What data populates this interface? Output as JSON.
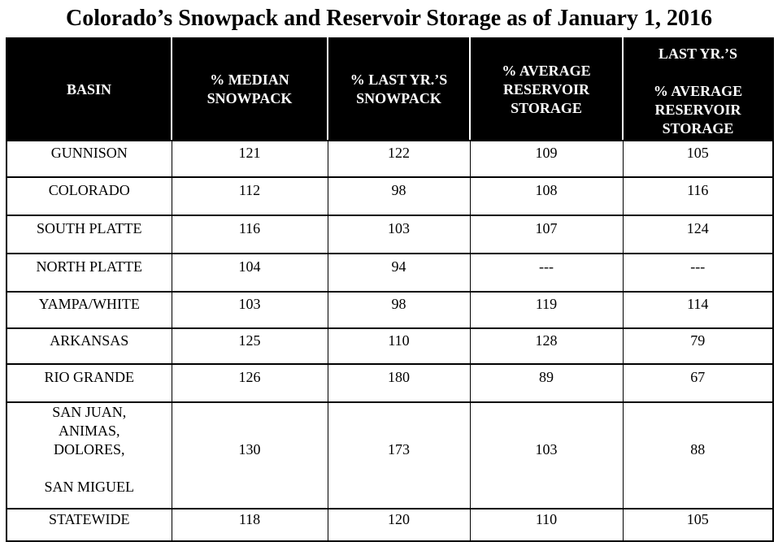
{
  "title": "Colorado’s Snowpack and Reservoir Storage as of January 1, 2016",
  "table": {
    "columns": [
      "BASIN",
      "% MEDIAN\nSNOWPACK",
      "% LAST YR.’S\nSNOWPACK",
      "% AVERAGE\nRESERVOIR\nSTORAGE",
      "LAST YR.’S\n\n% AVERAGE\nRESERVOIR\nSTORAGE"
    ],
    "rows": [
      {
        "basin": "GUNNISON",
        "values": [
          "121",
          "122",
          "109",
          "105"
        ]
      },
      {
        "basin": "COLORADO",
        "values": [
          "112",
          "98",
          "108",
          "116"
        ]
      },
      {
        "basin": "SOUTH PLATTE",
        "values": [
          "116",
          "103",
          "107",
          "124"
        ]
      },
      {
        "basin": "NORTH PLATTE",
        "values": [
          "104",
          "94",
          "---",
          "---"
        ]
      },
      {
        "basin": "YAMPA/WHITE",
        "values": [
          "103",
          "98",
          "119",
          "114"
        ]
      },
      {
        "basin": "ARKANSAS",
        "values": [
          "125",
          "110",
          "128",
          "79"
        ]
      },
      {
        "basin": "RIO GRANDE",
        "values": [
          "126",
          "180",
          "89",
          "67"
        ]
      },
      {
        "basin": "SAN JUAN,\nANIMAS,\nDOLORES,\n\nSAN MIGUEL",
        "values": [
          "130",
          "173",
          "103",
          "88"
        ]
      },
      {
        "basin": "STATEWIDE",
        "values": [
          "118",
          "120",
          "110",
          "105"
        ]
      }
    ]
  },
  "colors": {
    "header_background": "#000000",
    "header_text": "#ffffff",
    "body_text": "#000000",
    "border": "#000000"
  },
  "chart_data": {
    "type": "table",
    "title": "Colorado’s Snowpack and Reservoir Storage as of January 1, 2016",
    "columns": [
      "BASIN",
      "% MEDIAN SNOWPACK",
      "% LAST YR.’S SNOWPACK",
      "% AVERAGE RESERVOIR STORAGE",
      "LAST YR.’S % AVERAGE RESERVOIR STORAGE"
    ],
    "rows": [
      [
        "GUNNISON",
        121,
        122,
        109,
        105
      ],
      [
        "COLORADO",
        112,
        98,
        108,
        116
      ],
      [
        "SOUTH PLATTE",
        116,
        103,
        107,
        124
      ],
      [
        "NORTH PLATTE",
        104,
        94,
        "---",
        "---"
      ],
      [
        "YAMPA/WHITE",
        103,
        98,
        119,
        114
      ],
      [
        "ARKANSAS",
        125,
        110,
        128,
        79
      ],
      [
        "RIO GRANDE",
        126,
        180,
        89,
        67
      ],
      [
        "SAN JUAN, ANIMAS, DOLORES, SAN MIGUEL",
        130,
        173,
        103,
        88
      ],
      [
        "STATEWIDE",
        118,
        120,
        110,
        105
      ]
    ]
  }
}
